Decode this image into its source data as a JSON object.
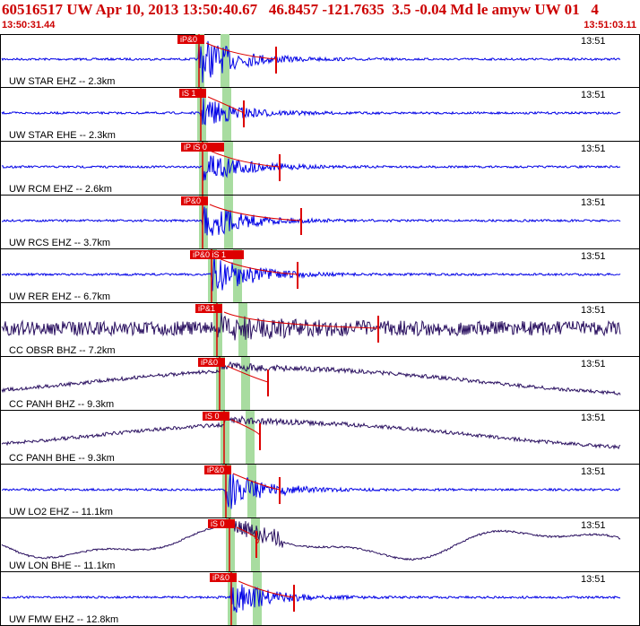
{
  "header": {
    "title": "60516517 UW Apr 10, 2013 13:50:40.67   46.8457 -121.7635  3.5 -0.04 Md le amyw UW 01   4",
    "start_time": "13:50:31.44",
    "end_time": "13:51:03.11"
  },
  "colors": {
    "header_text": "#cc0000",
    "blue_trace": "#0000e6",
    "dark_trace": "#2a1060",
    "pick": "#dd0000",
    "highlight": "#a8dca0"
  },
  "traces": [
    {
      "label": "UW STAR EHZ -- 2.3km",
      "time": "13:51",
      "pick": "iP&0",
      "color": "blue",
      "style": "event",
      "amp": 28
    },
    {
      "label": "UW STAR EHE -- 2.3km",
      "time": "13:51",
      "pick": "iS 1",
      "color": "blue",
      "style": "event",
      "amp": 18
    },
    {
      "label": "UW RCM EHZ -- 2.6km",
      "time": "13:51",
      "pick": "iP iS 0",
      "color": "blue",
      "style": "event",
      "amp": 22
    },
    {
      "label": "UW RCS EHZ -- 3.7km",
      "time": "13:51",
      "pick": "iP&0",
      "color": "blue",
      "style": "event",
      "amp": 24
    },
    {
      "label": "UW RER EHZ -- 6.7km",
      "time": "13:51",
      "pick": "iP&0 iS 1",
      "color": "blue",
      "style": "event",
      "amp": 26
    },
    {
      "label": "CC OBSR BHZ -- 7.2km",
      "time": "13:51",
      "pick": "iP&1",
      "color": "dark",
      "style": "noisy",
      "amp": 24
    },
    {
      "label": "CC PANH BHZ -- 9.3km",
      "time": "13:51",
      "pick": "iP&0",
      "color": "dark",
      "style": "drift",
      "amp": 22
    },
    {
      "label": "CC PANH BHE -- 9.3km",
      "time": "13:51",
      "pick": "iS 0",
      "color": "dark",
      "style": "drift",
      "amp": 22
    },
    {
      "label": "UW LO2 EHZ -- 11.1km",
      "time": "13:51",
      "pick": "iP&0",
      "color": "blue",
      "style": "event",
      "amp": 24
    },
    {
      "label": "UW LON BHE -- 11.1km",
      "time": "13:51",
      "pick": "iS 0",
      "color": "dark",
      "style": "wave",
      "amp": 26
    },
    {
      "label": "UW FMW EHZ -- 12.8km",
      "time": "13:51",
      "pick": "iP&0",
      "color": "blue",
      "style": "event",
      "amp": 20
    }
  ]
}
